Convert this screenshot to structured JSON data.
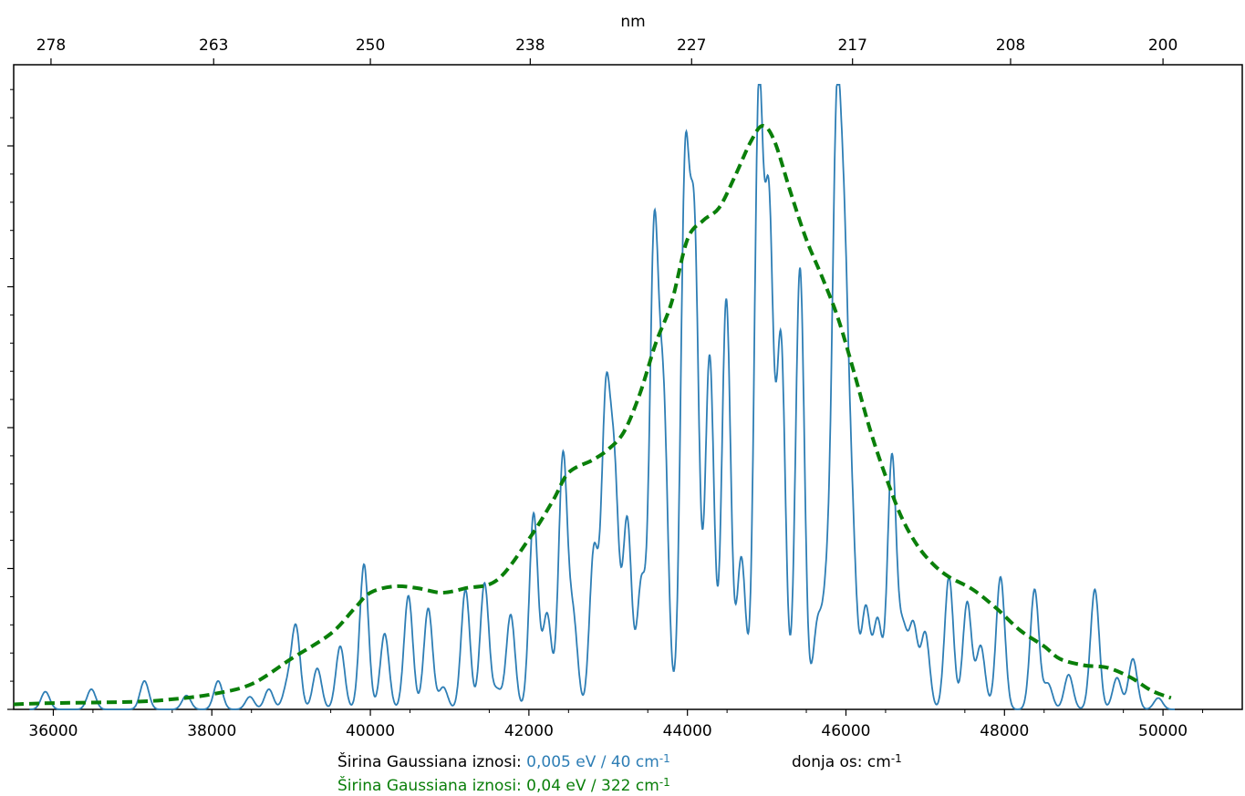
{
  "chart_data": {
    "type": "line",
    "xlabel_top": "nm",
    "xlim": [
      35500,
      51000
    ],
    "ylim": [
      0,
      1.0
    ],
    "grid": false,
    "bottom_ticks": [
      36000,
      38000,
      40000,
      42000,
      44000,
      46000,
      48000,
      50000
    ],
    "bottom_tick_labels": [
      "36000",
      "38000",
      "40000",
      "42000",
      "44000",
      "46000",
      "48000",
      "50000"
    ],
    "top_ticks": [
      35971,
      38023,
      40000,
      42017,
      44053,
      46083,
      48077,
      50000
    ],
    "top_tick_labels": [
      "278",
      "263",
      "250",
      "238",
      "227",
      "217",
      "208",
      "200"
    ],
    "series": [
      {
        "color": "#2e7eb5",
        "style": "solid",
        "peaks": [
          [
            35900,
            0.028
          ],
          [
            36480,
            0.032
          ],
          [
            37150,
            0.045
          ],
          [
            37680,
            0.022
          ],
          [
            38080,
            0.045
          ],
          [
            38480,
            0.02
          ],
          [
            38720,
            0.032
          ],
          [
            38950,
            0.035
          ],
          [
            39060,
            0.13
          ],
          [
            39330,
            0.065
          ],
          [
            39620,
            0.1
          ],
          [
            39920,
            0.23
          ],
          [
            40180,
            0.12
          ],
          [
            40480,
            0.18
          ],
          [
            40730,
            0.16
          ],
          [
            40920,
            0.035
          ],
          [
            41200,
            0.19
          ],
          [
            41440,
            0.2
          ],
          [
            41600,
            0.03
          ],
          [
            41770,
            0.15
          ],
          [
            42060,
            0.31
          ],
          [
            42230,
            0.15
          ],
          [
            42430,
            0.4
          ],
          [
            42560,
            0.14
          ],
          [
            42820,
            0.25
          ],
          [
            42970,
            0.47
          ],
          [
            43080,
            0.35
          ],
          [
            43240,
            0.3
          ],
          [
            43420,
            0.2
          ],
          [
            43580,
            0.74
          ],
          [
            43700,
            0.46
          ],
          [
            43970,
            0.83
          ],
          [
            44090,
            0.72
          ],
          [
            44280,
            0.56
          ],
          [
            44490,
            0.65
          ],
          [
            44680,
            0.24
          ],
          [
            44900,
            0.96
          ],
          [
            45030,
            0.76
          ],
          [
            45180,
            0.58
          ],
          [
            45420,
            0.7
          ],
          [
            45640,
            0.13
          ],
          [
            45760,
            0.17
          ],
          [
            45880,
            0.85
          ],
          [
            45980,
            0.6
          ],
          [
            46080,
            0.25
          ],
          [
            46250,
            0.16
          ],
          [
            46400,
            0.14
          ],
          [
            46580,
            0.4
          ],
          [
            46720,
            0.12
          ],
          [
            46850,
            0.13
          ],
          [
            47000,
            0.12
          ],
          [
            47300,
            0.21
          ],
          [
            47530,
            0.17
          ],
          [
            47700,
            0.1
          ],
          [
            47950,
            0.21
          ],
          [
            48380,
            0.19
          ],
          [
            48550,
            0.04
          ],
          [
            48810,
            0.055
          ],
          [
            49140,
            0.19
          ],
          [
            49420,
            0.05
          ],
          [
            49620,
            0.08
          ],
          [
            49940,
            0.018
          ]
        ],
        "width_cm": 40
      },
      {
        "color": "#0a7f0a",
        "style": "dashed",
        "points": [
          [
            35500,
            0.008
          ],
          [
            36000,
            0.01
          ],
          [
            37000,
            0.012
          ],
          [
            37500,
            0.016
          ],
          [
            38000,
            0.024
          ],
          [
            38500,
            0.04
          ],
          [
            39000,
            0.08
          ],
          [
            39500,
            0.12
          ],
          [
            39800,
            0.16
          ],
          [
            40000,
            0.185
          ],
          [
            40300,
            0.195
          ],
          [
            40600,
            0.192
          ],
          [
            40900,
            0.185
          ],
          [
            41200,
            0.192
          ],
          [
            41600,
            0.205
          ],
          [
            42000,
            0.27
          ],
          [
            42300,
            0.33
          ],
          [
            42500,
            0.375
          ],
          [
            42800,
            0.395
          ],
          [
            43000,
            0.412
          ],
          [
            43200,
            0.44
          ],
          [
            43400,
            0.5
          ],
          [
            43600,
            0.58
          ],
          [
            43800,
            0.645
          ],
          [
            44000,
            0.745
          ],
          [
            44200,
            0.775
          ],
          [
            44400,
            0.795
          ],
          [
            44600,
            0.845
          ],
          [
            44800,
            0.9
          ],
          [
            44950,
            0.925
          ],
          [
            45100,
            0.9
          ],
          [
            45300,
            0.82
          ],
          [
            45500,
            0.745
          ],
          [
            45700,
            0.685
          ],
          [
            45900,
            0.62
          ],
          [
            46100,
            0.535
          ],
          [
            46300,
            0.445
          ],
          [
            46500,
            0.37
          ],
          [
            46700,
            0.305
          ],
          [
            46900,
            0.26
          ],
          [
            47100,
            0.23
          ],
          [
            47300,
            0.21
          ],
          [
            47600,
            0.19
          ],
          [
            47900,
            0.16
          ],
          [
            48200,
            0.125
          ],
          [
            48500,
            0.1
          ],
          [
            48700,
            0.08
          ],
          [
            49000,
            0.07
          ],
          [
            49300,
            0.066
          ],
          [
            49600,
            0.05
          ],
          [
            49850,
            0.03
          ],
          [
            50100,
            0.018
          ]
        ]
      }
    ]
  },
  "captions": {
    "line1_prefix": "Širina Gaussiana iznosi: ",
    "line1_value": "0,005 eV / 40 cm",
    "line1_sup": "-1",
    "axis_note": "donja os: cm",
    "axis_note_sup": "-1",
    "line2_text": "Širina Gaussiana iznosi: 0,04 eV / 322 cm",
    "line2_sup": "-1",
    "color_blue": "#2e7eb5",
    "color_green": "#0a7f0a"
  }
}
